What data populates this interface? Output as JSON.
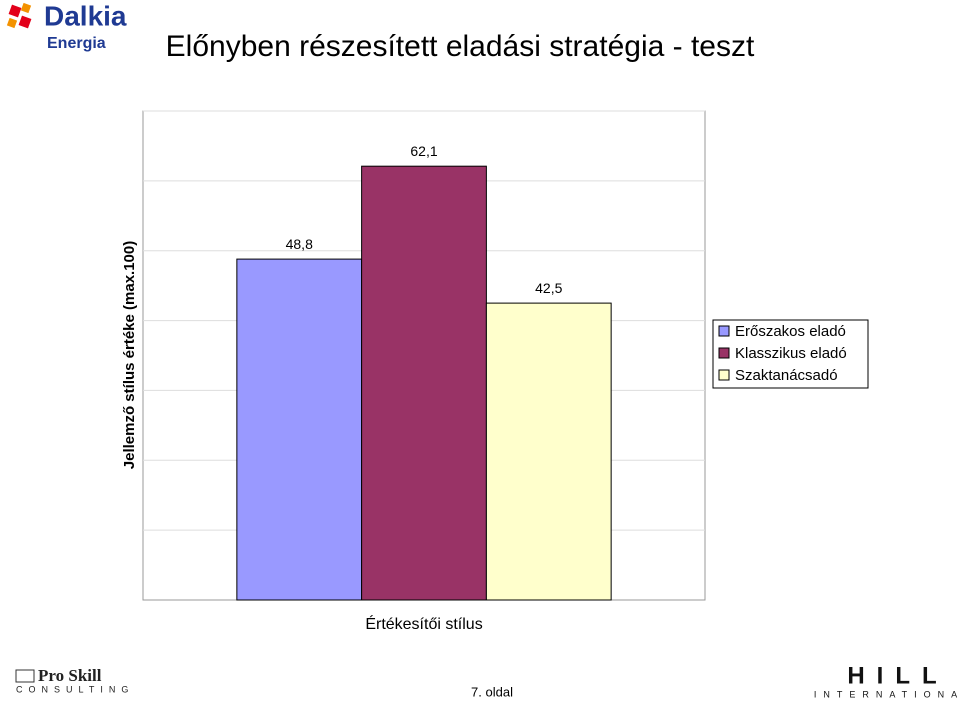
{
  "chart_data": {
    "type": "bar",
    "title": "Előnyben részesített eladási stratégia - teszt",
    "y_label": "Jellemző stílus értéke (max.100)",
    "x_label": "Értékesítői stílus",
    "categories": [
      null
    ],
    "series": [
      {
        "name": "Erőszakos eladó",
        "color": "#9999ff",
        "values": [
          48.8
        ],
        "value_labels": [
          "48,8"
        ]
      },
      {
        "name": "Klasszikus eladó",
        "color": "#993366",
        "values": [
          62.1
        ],
        "value_labels": [
          "62,1"
        ]
      },
      {
        "name": "Szaktanácsadó",
        "color": "#ffffcc",
        "values": [
          42.5
        ],
        "value_labels": [
          "42,5"
        ]
      }
    ],
    "ylim": [
      0,
      70
    ],
    "yticks": [
      0,
      10,
      20,
      30,
      40,
      50,
      60,
      70
    ],
    "show_tick_labels": false,
    "grid": true,
    "legend": "right"
  },
  "logos": {
    "dalkia": "Dalkia",
    "dalkia_sub": "Energia",
    "proskill": "Pro Skill",
    "proskill_sub": "CONSULTING",
    "hill": "HILL",
    "hill_sub": "INTERNATIONAL"
  },
  "footer": {
    "page": "7. oldal"
  }
}
